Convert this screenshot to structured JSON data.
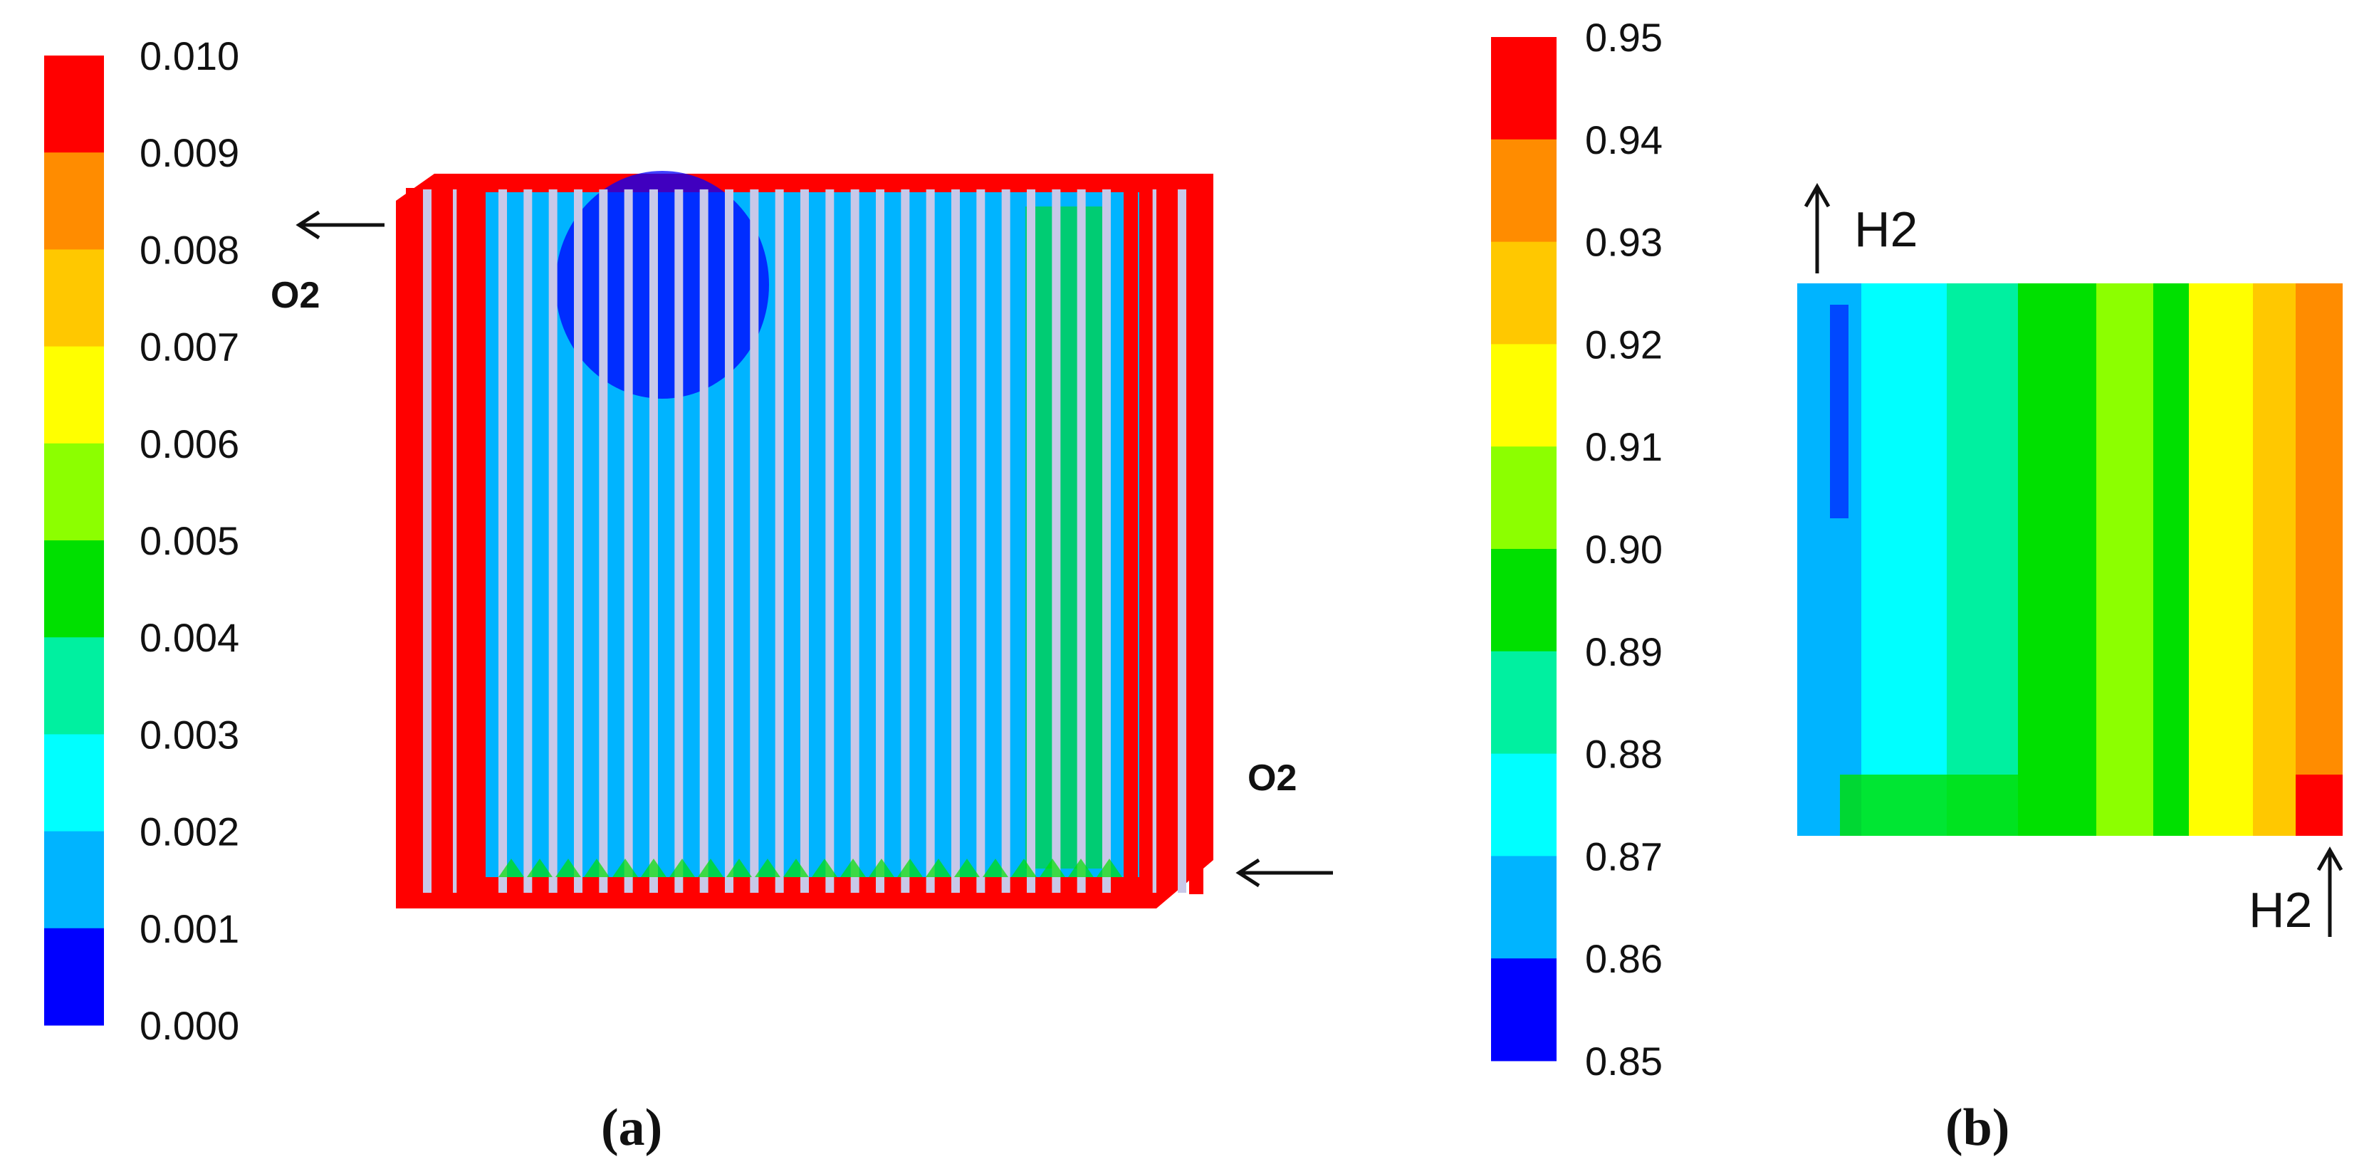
{
  "panel_a": {
    "caption": "(a)",
    "colorbar": {
      "ticks": [
        "0.010",
        "0.009",
        "0.008",
        "0.007",
        "0.006",
        "0.005",
        "0.004",
        "0.003",
        "0.002",
        "0.001",
        "0.000"
      ],
      "colors": [
        "#ff0000",
        "#ff8c00",
        "#ffc800",
        "#ffff00",
        "#8cff00",
        "#00e000",
        "#00f0a0",
        "#00ffff",
        "#00b4ff",
        "#0000ff"
      ]
    },
    "outlet_label": "O2",
    "inlet_label": "O2",
    "colors": {
      "border": "#ff0000",
      "rib": "#c8c8e8",
      "low": "#0000ff",
      "mid": "#00b4ff",
      "high": "#00e000"
    }
  },
  "panel_b": {
    "caption": "(b)",
    "colorbar": {
      "ticks": [
        "0.95",
        "0.94",
        "0.93",
        "0.92",
        "0.91",
        "0.90",
        "0.89",
        "0.88",
        "0.87",
        "0.86",
        "0.85"
      ],
      "colors": [
        "#ff0000",
        "#ff8c00",
        "#ffc800",
        "#ffff00",
        "#8cff00",
        "#00e000",
        "#00f0a0",
        "#00ffff",
        "#00b4ff",
        "#0000ff"
      ]
    },
    "top_label": "H2",
    "bottom_label": "H2",
    "field_colors": [
      "#00b4ff",
      "#00ffff",
      "#00f0a0",
      "#00e000",
      "#8cff00",
      "#ffff00",
      "#ffc800",
      "#ff8c00",
      "#ff0000"
    ]
  }
}
